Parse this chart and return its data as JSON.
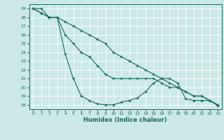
{
  "xlabel": "Humidex (Indice chaleur)",
  "ylabel": "",
  "xlim": [
    -0.5,
    23.5
  ],
  "ylim": [
    17.5,
    29.5
  ],
  "xticks": [
    0,
    1,
    2,
    3,
    4,
    5,
    6,
    7,
    8,
    9,
    10,
    11,
    12,
    13,
    14,
    15,
    16,
    17,
    18,
    19,
    20,
    21,
    22,
    23
  ],
  "yticks": [
    18,
    19,
    20,
    21,
    22,
    23,
    24,
    25,
    26,
    27,
    28,
    29
  ],
  "background_color": "#cce8e8",
  "grid_color": "#ffffff",
  "line_color": "#1a6b5a",
  "line1_x": [
    0,
    1,
    2,
    3,
    4,
    5,
    6,
    7,
    8,
    9,
    10,
    11,
    12,
    13,
    14,
    15,
    16,
    17,
    18,
    19,
    20,
    21,
    22,
    23
  ],
  "line1_y": [
    29,
    29,
    28,
    28,
    23.8,
    21,
    19.0,
    18.5,
    18.1,
    18.0,
    18.0,
    18.3,
    18.5,
    18.8,
    19.5,
    20.5,
    21.0,
    21.0,
    20.5,
    18.7,
    18.5,
    18.5,
    18.5,
    17.9
  ],
  "line2_x": [
    0,
    1,
    2,
    3,
    4,
    5,
    6,
    7,
    8,
    9,
    10,
    11,
    12,
    13,
    14,
    15,
    16,
    17,
    18,
    19,
    20,
    21,
    22,
    23
  ],
  "line2_y": [
    29,
    28.5,
    28.0,
    28.0,
    26,
    25,
    24,
    23.5,
    22.5,
    21.5,
    21.0,
    21.0,
    21.0,
    21.0,
    21.0,
    21.0,
    20.5,
    20.0,
    20.0,
    19.5,
    19.0,
    19.0,
    18.5,
    18.0
  ],
  "line3_x": [
    0,
    1,
    2,
    3,
    4,
    5,
    6,
    7,
    8,
    9,
    10,
    11,
    12,
    13,
    14,
    15,
    16,
    17,
    18,
    19,
    20,
    21,
    22,
    23
  ],
  "line3_y": [
    29,
    28.5,
    28.0,
    28.0,
    27.5,
    27.0,
    26.5,
    26.0,
    25.5,
    25.0,
    24.0,
    23.5,
    23.0,
    22.5,
    22.0,
    21.5,
    21.0,
    20.5,
    20.0,
    19.5,
    19.0,
    19.0,
    18.5,
    18.0
  ]
}
